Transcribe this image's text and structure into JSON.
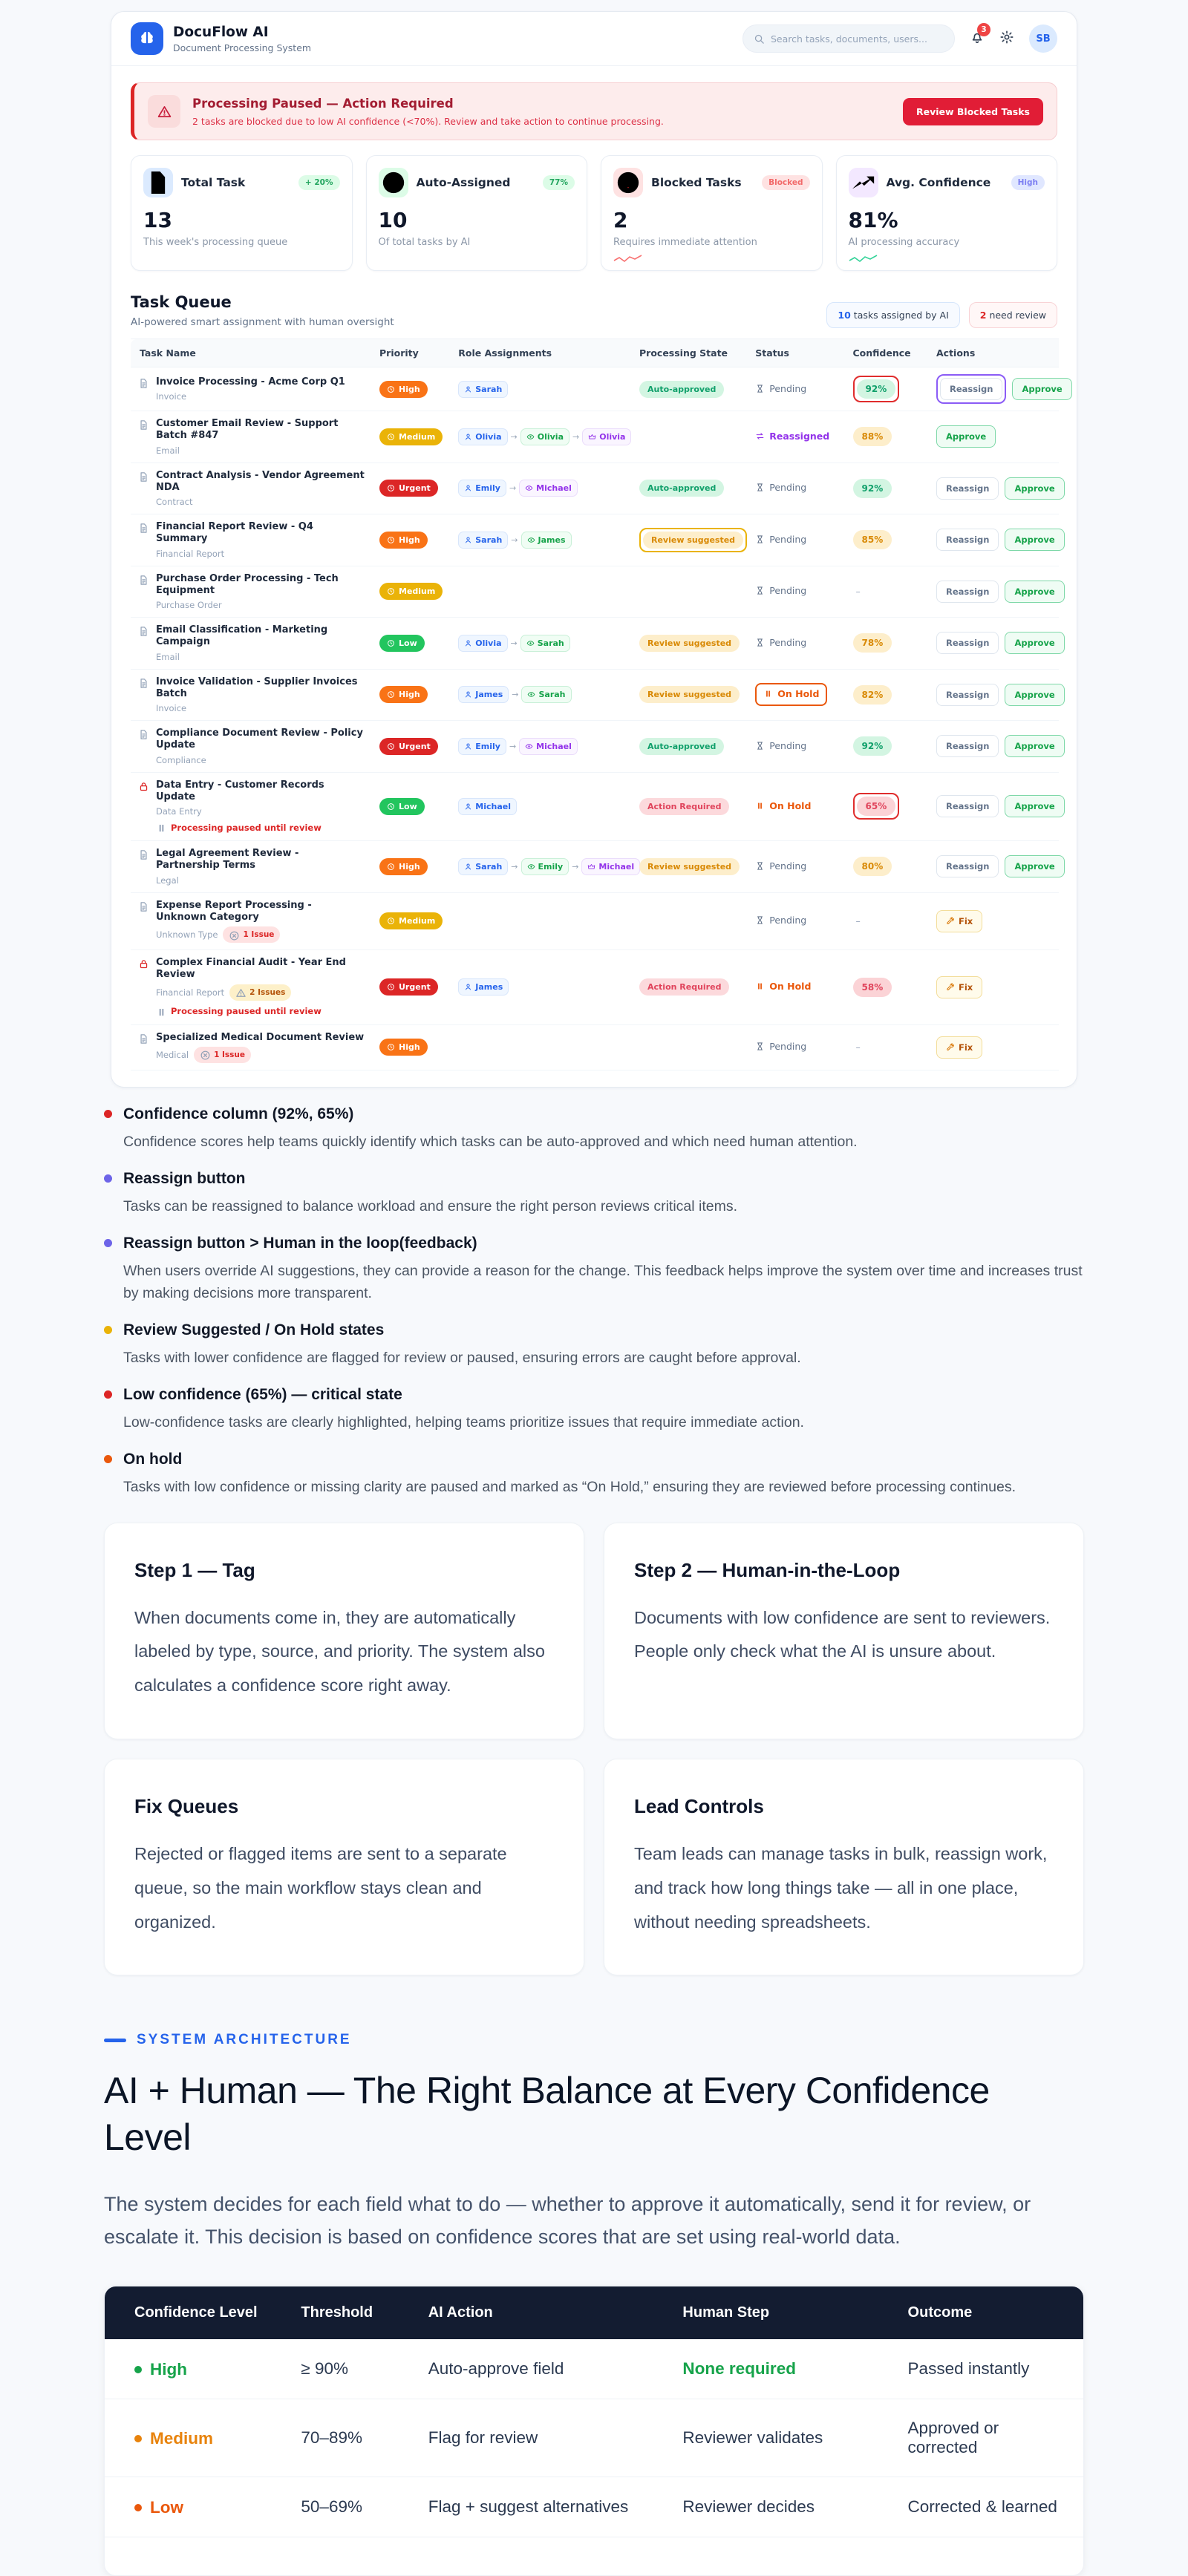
{
  "app": {
    "brand": {
      "name": "DocuFlow AI",
      "subtitle": "Document Processing System",
      "logo_icon": "brain-icon"
    },
    "header": {
      "search_placeholder": "Search tasks, documents, users...",
      "notification_count": "3",
      "avatar_initials": "SB"
    },
    "alert": {
      "title": "Processing Paused — Action Required",
      "message": "2 tasks are blocked due to low AI confidence (<70%). Review and take action to continue processing.",
      "button_label": "Review Blocked Tasks"
    },
    "stats": [
      {
        "icon": "document-icon",
        "tone": "blue",
        "label": "Total Task",
        "badge": "+ 20%",
        "badge_tone": "green",
        "value": "13",
        "sub": "This week's processing queue"
      },
      {
        "icon": "check-circle-icon",
        "tone": "green",
        "label": "Auto-Assigned",
        "badge": "77%",
        "badge_tone": "green",
        "value": "10",
        "sub": "Of total tasks by AI"
      },
      {
        "icon": "alert-circle-icon",
        "tone": "red",
        "label": "Blocked Tasks",
        "badge": "Blocked",
        "badge_tone": "red",
        "value": "2",
        "sub": "Requires immediate attention",
        "spark": "#f87171"
      },
      {
        "icon": "trending-up-icon",
        "tone": "purple",
        "label": "Avg. Confidence",
        "badge": "High",
        "badge_tone": "indigo",
        "value": "81%",
        "sub": "AI processing accuracy",
        "spark": "#34d399"
      }
    ],
    "queue": {
      "title": "Task Queue",
      "subtitle": "AI-powered smart assignment with human oversight",
      "badges": [
        {
          "count": "10",
          "label": "tasks assigned by AI",
          "tone": "blue"
        },
        {
          "count": "2",
          "label": "need review",
          "tone": "red"
        }
      ],
      "columns": [
        "Task Name",
        "Priority",
        "Role Assignments",
        "Processing State",
        "Status",
        "Confidence",
        "Actions"
      ],
      "rows": [
        {
          "name": "Invoice Processing - Acme Corp Q1",
          "category": "Invoice",
          "priority": "High",
          "priority_tone": "high",
          "roles": [
            {
              "name": "Sarah",
              "tone": "blue"
            }
          ],
          "state": {
            "label": "Auto-approved",
            "tone": "green"
          },
          "status": {
            "label": "Pending",
            "type": "pending"
          },
          "confidence": {
            "label": "92%",
            "tone": "green",
            "ring": "red"
          },
          "actions": [
            {
              "label": "Reassign",
              "type": "reassign",
              "ring": "purple"
            },
            {
              "label": "Approve",
              "type": "approve"
            }
          ]
        },
        {
          "name": "Customer Email Review - Support Batch #847",
          "category": "Email",
          "priority": "Medium",
          "priority_tone": "medium",
          "roles": [
            {
              "name": "Olivia",
              "tone": "blue"
            },
            {
              "name": "Olivia",
              "tone": "green"
            },
            {
              "name": "Olivia",
              "tone": "purple"
            }
          ],
          "state": null,
          "status": {
            "label": "Reassigned",
            "type": "reassigned"
          },
          "confidence": {
            "label": "88%",
            "tone": "amber"
          },
          "actions": [
            {
              "label": "Approve",
              "type": "approve"
            }
          ]
        },
        {
          "name": "Contract Analysis - Vendor Agreement NDA",
          "category": "Contract",
          "priority": "Urgent",
          "priority_tone": "urgent",
          "roles": [
            {
              "name": "Emily",
              "tone": "blue"
            },
            {
              "name": "Michael",
              "tone": "purple"
            }
          ],
          "state": {
            "label": "Auto-approved",
            "tone": "green"
          },
          "status": {
            "label": "Pending",
            "type": "pending"
          },
          "confidence": {
            "label": "92%",
            "tone": "green"
          },
          "actions": [
            {
              "label": "Reassign",
              "type": "reassign"
            },
            {
              "label": "Approve",
              "type": "approve"
            }
          ]
        },
        {
          "name": "Financial Report Review - Q4 Summary",
          "category": "Financial Report",
          "priority": "High",
          "priority_tone": "high",
          "roles": [
            {
              "name": "Sarah",
              "tone": "blue"
            },
            {
              "name": "James",
              "tone": "green"
            }
          ],
          "state": {
            "label": "Review suggested",
            "tone": "amber",
            "ring": "amber"
          },
          "status": {
            "label": "Pending",
            "type": "pending"
          },
          "confidence": {
            "label": "85%",
            "tone": "amber"
          },
          "actions": [
            {
              "label": "Reassign",
              "type": "reassign"
            },
            {
              "label": "Approve",
              "type": "approve"
            }
          ]
        },
        {
          "name": "Purchase Order Processing - Tech Equipment",
          "category": "Purchase Order",
          "priority": "Medium",
          "priority_tone": "medium",
          "roles": [],
          "state": null,
          "status": {
            "label": "Pending",
            "type": "pending"
          },
          "confidence": {
            "label": "–",
            "tone": "none"
          },
          "actions": [
            {
              "label": "Reassign",
              "type": "reassign"
            },
            {
              "label": "Approve",
              "type": "approve"
            }
          ]
        },
        {
          "name": "Email Classification - Marketing Campaign",
          "category": "Email",
          "priority": "Low",
          "priority_tone": "low",
          "roles": [
            {
              "name": "Olivia",
              "tone": "blue"
            },
            {
              "name": "Sarah",
              "tone": "green"
            }
          ],
          "state": {
            "label": "Review suggested",
            "tone": "amber"
          },
          "status": {
            "label": "Pending",
            "type": "pending"
          },
          "confidence": {
            "label": "78%",
            "tone": "amber"
          },
          "actions": [
            {
              "label": "Reassign",
              "type": "reassign"
            },
            {
              "label": "Approve",
              "type": "approve"
            }
          ]
        },
        {
          "name": "Invoice Validation - Supplier Invoices Batch",
          "category": "Invoice",
          "priority": "High",
          "priority_tone": "high",
          "roles": [
            {
              "name": "James",
              "tone": "blue"
            },
            {
              "name": "Sarah",
              "tone": "green"
            }
          ],
          "state": {
            "label": "Review suggested",
            "tone": "amber"
          },
          "status": {
            "label": "On Hold",
            "type": "onhold",
            "ring": "orange"
          },
          "confidence": {
            "label": "82%",
            "tone": "amber"
          },
          "actions": [
            {
              "label": "Reassign",
              "type": "reassign"
            },
            {
              "label": "Approve",
              "type": "approve"
            }
          ]
        },
        {
          "name": "Compliance Document Review - Policy Update",
          "category": "Compliance",
          "priority": "Urgent",
          "priority_tone": "urgent",
          "roles": [
            {
              "name": "Emily",
              "tone": "blue"
            },
            {
              "name": "Michael",
              "tone": "purple"
            }
          ],
          "state": {
            "label": "Auto-approved",
            "tone": "green"
          },
          "status": {
            "label": "Pending",
            "type": "pending"
          },
          "confidence": {
            "label": "92%",
            "tone": "green"
          },
          "actions": [
            {
              "label": "Reassign",
              "type": "reassign"
            },
            {
              "label": "Approve",
              "type": "approve"
            }
          ]
        },
        {
          "name": "Data Entry - Customer Records Update",
          "category": "Data Entry",
          "locked": true,
          "note": "Processing paused until review",
          "priority": "Low",
          "priority_tone": "low",
          "roles": [
            {
              "name": "Michael",
              "tone": "blue"
            }
          ],
          "state": {
            "label": "Action Required",
            "tone": "red"
          },
          "status": {
            "label": "On Hold",
            "type": "onhold"
          },
          "confidence": {
            "label": "65%",
            "tone": "red",
            "ring": "red"
          },
          "actions": [
            {
              "label": "Reassign",
              "type": "reassign"
            },
            {
              "label": "Approve",
              "type": "approve"
            }
          ]
        },
        {
          "name": "Legal Agreement Review - Partnership Terms",
          "category": "Legal",
          "priority": "High",
          "priority_tone": "high",
          "roles": [
            {
              "name": "Sarah",
              "tone": "blue"
            },
            {
              "name": "Emily",
              "tone": "green"
            },
            {
              "name": "Michael",
              "tone": "purple"
            }
          ],
          "state": {
            "label": "Review suggested",
            "tone": "amber"
          },
          "status": {
            "label": "Pending",
            "type": "pending"
          },
          "confidence": {
            "label": "80%",
            "tone": "amber"
          },
          "actions": [
            {
              "label": "Reassign",
              "type": "reassign"
            },
            {
              "label": "Approve",
              "type": "approve"
            }
          ]
        },
        {
          "name": "Expense Report Processing - Unknown Category",
          "category": "Unknown Type",
          "issue": {
            "label": "1 Issue",
            "tone": "red"
          },
          "priority": "Medium",
          "priority_tone": "medium",
          "roles": [],
          "state": null,
          "status": {
            "label": "Pending",
            "type": "pending"
          },
          "confidence": {
            "label": "–",
            "tone": "none"
          },
          "actions": [
            {
              "label": "Fix",
              "type": "fix"
            }
          ]
        },
        {
          "name": "Complex Financial Audit - Year End Review",
          "category": "Financial Report",
          "locked": true,
          "issue": {
            "label": "2 Issues",
            "tone": "amber"
          },
          "note": "Processing paused until review",
          "priority": "Urgent",
          "priority_tone": "urgent",
          "roles": [
            {
              "name": "James",
              "tone": "blue"
            }
          ],
          "state": {
            "label": "Action Required",
            "tone": "red"
          },
          "status": {
            "label": "On Hold",
            "type": "onhold"
          },
          "confidence": {
            "label": "58%",
            "tone": "red"
          },
          "actions": [
            {
              "label": "Fix",
              "type": "fix"
            }
          ]
        },
        {
          "name": "Specialized Medical Document Review",
          "category": "Medical",
          "issue": {
            "label": "1 Issue",
            "tone": "red"
          },
          "priority": "High",
          "priority_tone": "high",
          "roles": [],
          "state": null,
          "status": {
            "label": "Pending",
            "type": "pending"
          },
          "confidence": {
            "label": "–",
            "tone": "none"
          },
          "actions": [
            {
              "label": "Fix",
              "type": "fix"
            }
          ]
        }
      ]
    }
  },
  "callouts": [
    {
      "dot": "red",
      "title": "Confidence column (92%, 65%)",
      "body": "Confidence scores help teams quickly identify which tasks can be auto-approved and which need human attention."
    },
    {
      "dot": "indigo",
      "title": "Reassign button",
      "body": "Tasks can be reassigned to balance workload and ensure the right person reviews critical items."
    },
    {
      "dot": "indigo",
      "title": "Reassign button > Human in the loop(feedback)",
      "body": "When users override AI suggestions, they can provide a reason for the change. This feedback helps improve the system over time and increases trust by making decisions more transparent."
    },
    {
      "dot": "amber",
      "title": "Review Suggested / On Hold states",
      "body": "Tasks with lower confidence are flagged for review or paused, ensuring errors are caught before approval."
    },
    {
      "dot": "red",
      "title": "Low confidence (65%) — critical state",
      "body": "Low-confidence tasks are clearly highlighted, helping teams prioritize issues that require immediate action."
    },
    {
      "dot": "orange",
      "title": "On hold",
      "body": "Tasks with low confidence or missing clarity are paused and marked as “On Hold,” ensuring they are reviewed before processing continues."
    }
  ],
  "feature_cards": [
    {
      "title": "Step 1 — Tag",
      "body": "When documents come in, they are automatically labeled by type, source, and priority. The system also calculates a confidence score right away."
    },
    {
      "title": "Step 2 — Human-in-the-Loop",
      "body": "Documents with low confidence are sent to reviewers. People only check what the AI is unsure about."
    },
    {
      "title": "Fix Queues",
      "body": "Rejected or flagged items are sent to a separate queue, so the main workflow stays clean and organized."
    },
    {
      "title": "Lead Controls",
      "body": "Team leads can manage tasks in bulk, reassign work, and track how long things take — all in one place, without needing spreadsheets."
    }
  ],
  "architecture": {
    "eyebrow": "SYSTEM ARCHITECTURE",
    "title": "AI + Human — The Right Balance at Every Confidence Level",
    "description": "The system decides for each field what to do — whether to approve it automatically, send it for review, or escalate it. This decision is based on confidence scores that are set using real-world data.",
    "table": {
      "columns": [
        "Confidence Level",
        "Threshold",
        "AI Action",
        "Human Step",
        "Outcome"
      ],
      "rows": [
        {
          "level": "High",
          "level_tone": "green",
          "threshold": "≥ 90%",
          "ai_action": "Auto-approve field",
          "human_step": "None required",
          "human_emphasis": true,
          "outcome": "Passed instantly"
        },
        {
          "level": "Medium",
          "level_tone": "orange",
          "threshold": "70–89%",
          "ai_action": "Flag for review",
          "human_step": "Reviewer validates",
          "human_emphasis": false,
          "outcome": "Approved or corrected"
        },
        {
          "level": "Low",
          "level_tone": "red",
          "threshold": "50–69%",
          "ai_action": "Flag + suggest alternatives",
          "human_step": "Reviewer decides",
          "human_emphasis": false,
          "outcome": "Corrected & learned"
        }
      ]
    }
  }
}
